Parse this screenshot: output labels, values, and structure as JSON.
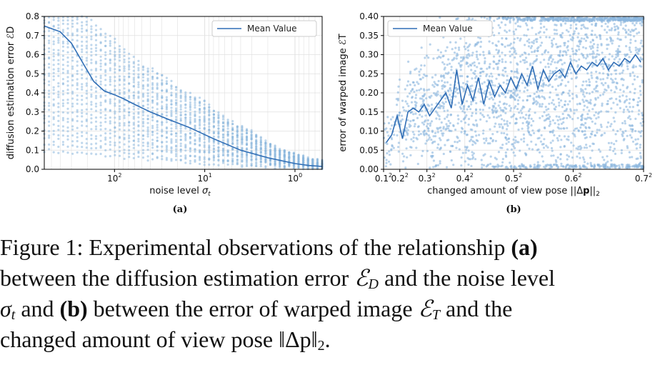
{
  "chart_data": [
    {
      "type": "scatter",
      "panel_label": "(a)",
      "xlabel": "noise level σt",
      "ylabel": "diffusion estimation error ℰD",
      "x_scale": "log, reversed",
      "xlim": [
        600,
        0.5
      ],
      "ylim": [
        0.0,
        0.8
      ],
      "x_ticks": [
        {
          "value": 100,
          "base": "10",
          "exp": "2"
        },
        {
          "value": 10,
          "base": "10",
          "exp": "1"
        },
        {
          "value": 1,
          "base": "10",
          "exp": "0"
        }
      ],
      "y_ticks": [
        "0.0",
        "0.1",
        "0.2",
        "0.3",
        "0.4",
        "0.5",
        "0.6",
        "0.7",
        "0.8"
      ],
      "grid": true,
      "legend": {
        "position": "top-right",
        "entries": [
          "Mean Value"
        ]
      },
      "series": [
        {
          "name": "Mean Value",
          "kind": "line",
          "x": [
            600,
            400,
            300,
            220,
            170,
            130,
            100,
            80,
            60,
            40,
            25,
            15,
            8,
            4,
            2,
            1,
            0.7,
            0.5
          ],
          "y": [
            0.75,
            0.72,
            0.66,
            0.55,
            0.46,
            0.41,
            0.39,
            0.37,
            0.34,
            0.3,
            0.26,
            0.22,
            0.16,
            0.1,
            0.06,
            0.03,
            0.02,
            0.015
          ]
        },
        {
          "name": "samples",
          "kind": "scatter",
          "description": "many per-sample error curves spread between upper and lower envelopes",
          "upper_x": [
            600,
            200,
            100,
            30,
            10,
            3,
            1,
            0.5
          ],
          "upper_y": [
            0.8,
            0.8,
            0.68,
            0.5,
            0.36,
            0.2,
            0.08,
            0.04
          ],
          "lower_x": [
            600,
            200,
            100,
            30,
            10,
            3,
            1,
            0.5
          ],
          "lower_y": [
            0.1,
            0.08,
            0.07,
            0.05,
            0.03,
            0.02,
            0.01,
            0.005
          ]
        }
      ]
    },
    {
      "type": "scatter",
      "panel_label": "(b)",
      "xlabel": "changed amount of view pose ||Δp||2",
      "ylabel": "error of warped image ℰT",
      "xlim": [
        0.01,
        0.49
      ],
      "ylim": [
        0.0,
        0.4
      ],
      "x_ticks": [
        {
          "value": 0.01,
          "base": "0.1",
          "exp": "2"
        },
        {
          "value": 0.04,
          "base": "0.2",
          "exp": "2"
        },
        {
          "value": 0.09,
          "base": "0.3",
          "exp": "2"
        },
        {
          "value": 0.16,
          "base": "0.4",
          "exp": "2"
        },
        {
          "value": 0.25,
          "base": "0.5",
          "exp": "2"
        },
        {
          "value": 0.36,
          "base": "0.6",
          "exp": "2"
        },
        {
          "value": 0.49,
          "base": "0.7",
          "exp": "2"
        }
      ],
      "y_ticks": [
        "0.00",
        "0.05",
        "0.10",
        "0.15",
        "0.20",
        "0.25",
        "0.30",
        "0.35",
        "0.40"
      ],
      "grid": true,
      "legend": {
        "position": "top-left",
        "entries": [
          "Mean Value"
        ]
      },
      "series": [
        {
          "name": "Mean Value",
          "kind": "line",
          "x": [
            0.015,
            0.025,
            0.035,
            0.045,
            0.055,
            0.065,
            0.075,
            0.085,
            0.095,
            0.105,
            0.115,
            0.125,
            0.135,
            0.145,
            0.155,
            0.165,
            0.175,
            0.185,
            0.195,
            0.205,
            0.215,
            0.225,
            0.235,
            0.245,
            0.255,
            0.265,
            0.275,
            0.285,
            0.295,
            0.305,
            0.315,
            0.325,
            0.335,
            0.345,
            0.355,
            0.365,
            0.375,
            0.385,
            0.395,
            0.405,
            0.415,
            0.425,
            0.435,
            0.445,
            0.455,
            0.465,
            0.475,
            0.485
          ],
          "y": [
            0.07,
            0.09,
            0.14,
            0.08,
            0.15,
            0.16,
            0.15,
            0.17,
            0.14,
            0.16,
            0.18,
            0.2,
            0.16,
            0.26,
            0.17,
            0.22,
            0.18,
            0.24,
            0.17,
            0.23,
            0.19,
            0.22,
            0.2,
            0.24,
            0.21,
            0.25,
            0.22,
            0.27,
            0.21,
            0.26,
            0.23,
            0.25,
            0.26,
            0.24,
            0.28,
            0.25,
            0.27,
            0.26,
            0.28,
            0.27,
            0.29,
            0.26,
            0.28,
            0.27,
            0.29,
            0.28,
            0.3,
            0.28
          ]
        },
        {
          "name": "samples",
          "kind": "scatter",
          "description": "dense point cloud across the panel",
          "y_range": [
            0.0,
            0.4
          ]
        }
      ]
    }
  ],
  "caption": {
    "prefix": "Figure 1: Experimental observations of the relationship ",
    "ref_a": "(a)",
    "line2": "between the diffusion estimation error ",
    "sym_ED": "ℰ",
    "sub_D": "D",
    "line2b": " and the noise level",
    "sym_sigma": "σ",
    "sub_t": "t",
    "mid": " and ",
    "ref_b": "(b)",
    "line3": " between the error of warped image ",
    "sym_ET": "ℰ",
    "sub_T": "T",
    "line3b": " and the",
    "line4": "changed amount of view pose ",
    "norm": "‖Δp‖",
    "sub_2": "2",
    "end": "."
  },
  "colors": {
    "line": "#2f6db5",
    "dots": "#8bb6dd",
    "grid": "#e0e0e0"
  }
}
